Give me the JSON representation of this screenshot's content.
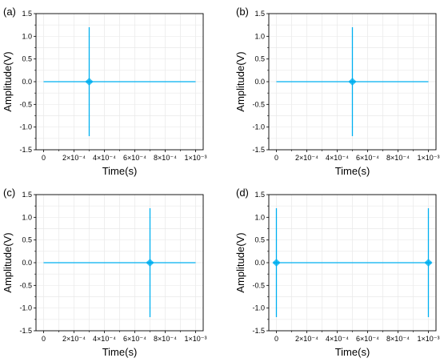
{
  "line_color": "#00b0f0",
  "chart_data": [
    {
      "type": "line",
      "panel_label": "(a)",
      "xlabel": "Time(s)",
      "ylabel": "Amplitude(V)",
      "xlim": [
        -5e-05,
        0.00105
      ],
      "ylim": [
        -1.5,
        1.5
      ],
      "xticks": [
        0,
        0.0002,
        0.0004,
        0.0006,
        0.0008,
        0.001
      ],
      "xtick_labels": [
        "0",
        "2×10⁻⁴",
        "4×10⁻⁴",
        "6×10⁻⁴",
        "8×10⁻⁴",
        "1×10⁻³"
      ],
      "yticks": [
        -1.5,
        -1.0,
        -0.5,
        0.0,
        0.5,
        1.0,
        1.5
      ],
      "ytick_labels": [
        "-1.5",
        "-1.0",
        "-0.5",
        "0.0",
        "0.5",
        "1.0",
        "1.5"
      ],
      "grid": true,
      "series": [
        {
          "x": [
            0,
            0.001
          ],
          "y": [
            0,
            0
          ],
          "spikes": [
            {
              "x": 0.0003,
              "ymax": 1.2,
              "ymin": -1.2
            }
          ]
        }
      ]
    },
    {
      "type": "line",
      "panel_label": "(b)",
      "xlabel": "Time(s)",
      "ylabel": "Amplitude(V)",
      "xlim": [
        -5e-05,
        0.00105
      ],
      "ylim": [
        -1.5,
        1.5
      ],
      "xticks": [
        0,
        0.0002,
        0.0004,
        0.0006,
        0.0008,
        0.001
      ],
      "xtick_labels": [
        "0",
        "2×10⁻⁴",
        "4×10⁻⁴",
        "6×10⁻⁴",
        "8×10⁻⁴",
        "1×10⁻³"
      ],
      "yticks": [
        -1.5,
        -1.0,
        -0.5,
        0.0,
        0.5,
        1.0,
        1.5
      ],
      "ytick_labels": [
        "-1.5",
        "-1.0",
        "-0.5",
        "0.0",
        "0.5",
        "1.0",
        "1.5"
      ],
      "grid": true,
      "series": [
        {
          "x": [
            0,
            0.001
          ],
          "y": [
            0,
            0
          ],
          "spikes": [
            {
              "x": 0.0005,
              "ymax": 1.2,
              "ymin": -1.2
            }
          ]
        }
      ]
    },
    {
      "type": "line",
      "panel_label": "(c)",
      "xlabel": "Time(s)",
      "ylabel": "Amplitude(V)",
      "xlim": [
        -5e-05,
        0.00105
      ],
      "ylim": [
        -1.5,
        1.5
      ],
      "xticks": [
        0,
        0.0002,
        0.0004,
        0.0006,
        0.0008,
        0.001
      ],
      "xtick_labels": [
        "0",
        "2×10⁻⁴",
        "4×10⁻⁴",
        "6×10⁻⁴",
        "8×10⁻⁴",
        "1×10⁻³"
      ],
      "yticks": [
        -1.5,
        -1.0,
        -0.5,
        0.0,
        0.5,
        1.0,
        1.5
      ],
      "ytick_labels": [
        "-1.5",
        "-1.0",
        "-0.5",
        "0.0",
        "0.5",
        "1.0",
        "1.5"
      ],
      "grid": true,
      "series": [
        {
          "x": [
            0,
            0.001
          ],
          "y": [
            0,
            0
          ],
          "spikes": [
            {
              "x": 0.0007,
              "ymax": 1.2,
              "ymin": -1.2
            }
          ]
        }
      ]
    },
    {
      "type": "line",
      "panel_label": "(d)",
      "xlabel": "Time(s)",
      "ylabel": "Amplitude(V)",
      "xlim": [
        -5e-05,
        0.00105
      ],
      "ylim": [
        -1.5,
        1.5
      ],
      "xticks": [
        0,
        0.0002,
        0.0004,
        0.0006,
        0.0008,
        0.001
      ],
      "xtick_labels": [
        "0",
        "2×10⁻⁴",
        "4×10⁻⁴",
        "6×10⁻⁴",
        "8×10⁻⁴",
        "1×10⁻³"
      ],
      "yticks": [
        -1.5,
        -1.0,
        -0.5,
        0.0,
        0.5,
        1.0,
        1.5
      ],
      "ytick_labels": [
        "-1.5",
        "-1.0",
        "-0.5",
        "0.0",
        "0.5",
        "1.0",
        "1.5"
      ],
      "grid": true,
      "series": [
        {
          "x": [
            0,
            0.001
          ],
          "y": [
            0,
            0
          ],
          "spikes": [
            {
              "x": 0,
              "ymax": 1.2,
              "ymin": -1.2
            },
            {
              "x": 0.001,
              "ymax": 1.2,
              "ymin": -1.2
            }
          ]
        }
      ]
    }
  ]
}
